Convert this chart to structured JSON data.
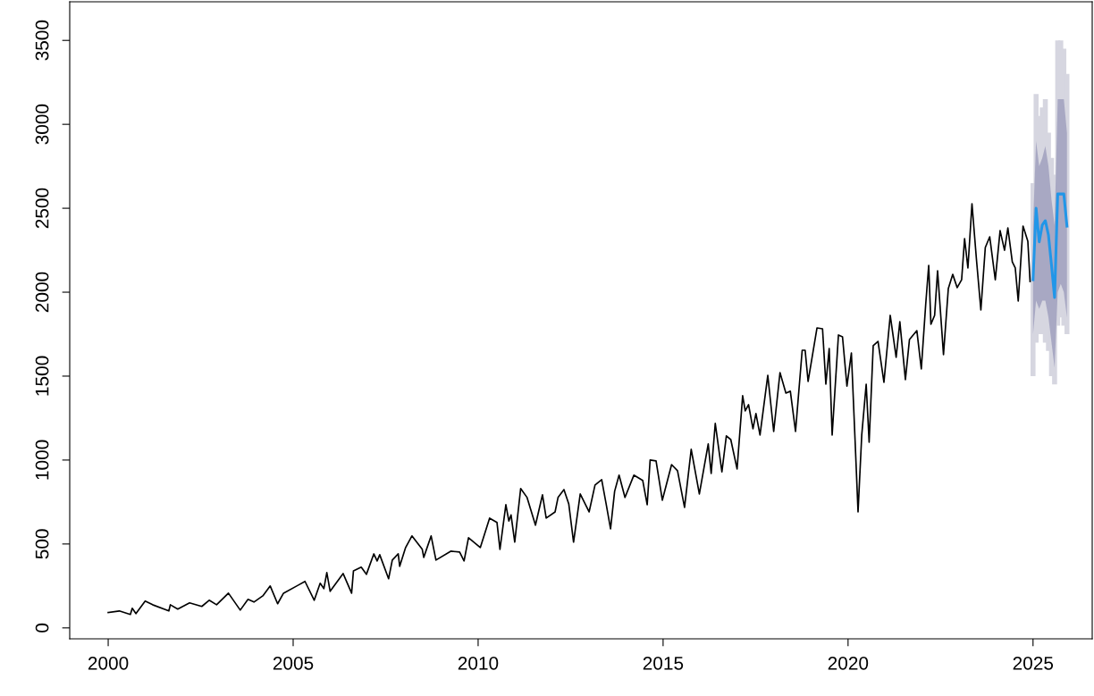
{
  "chart_data": {
    "type": "line",
    "xlim": [
      1998.96,
      2026.6
    ],
    "ylim": [
      -65,
      3730
    ],
    "xticks": [
      2000,
      2005,
      2010,
      2015,
      2020,
      2025
    ],
    "yticks": [
      0,
      500,
      1000,
      1500,
      2000,
      2500,
      3000,
      3500
    ],
    "grid": false,
    "marker": "none",
    "line_style": "solid",
    "series": [
      {
        "color": "#000000",
        "x": [
          2000.0,
          2000.3,
          2000.6,
          2000.65,
          2000.75,
          2001.0,
          2001.2,
          2001.64,
          2001.68,
          2001.88,
          2002.2,
          2002.53,
          2002.73,
          2002.93,
          2003.25,
          2003.57,
          2003.78,
          2003.94,
          2004.18,
          2004.38,
          2004.58,
          2004.74,
          2005.14,
          2005.32,
          2005.57,
          2005.73,
          2005.83,
          2005.91,
          2006.0,
          2006.35,
          2006.58,
          2006.63,
          2006.84,
          2006.98,
          2007.18,
          2007.27,
          2007.34,
          2007.58,
          2007.68,
          2007.84,
          2007.88,
          2008.04,
          2008.21,
          2008.49,
          2008.53,
          2008.73,
          2008.86,
          2009.26,
          2009.5,
          2009.62,
          2009.74,
          2010.06,
          2010.31,
          2010.51,
          2010.59,
          2010.75,
          2010.83,
          2010.89,
          2010.99,
          2011.15,
          2011.32,
          2011.55,
          2011.74,
          2011.84,
          2012.08,
          2012.16,
          2012.32,
          2012.45,
          2012.58,
          2012.76,
          2013.0,
          2013.16,
          2013.34,
          2013.46,
          2013.58,
          2013.69,
          2013.81,
          2013.97,
          2014.21,
          2014.45,
          2014.57,
          2014.65,
          2014.81,
          2014.98,
          2015.23,
          2015.39,
          2015.58,
          2015.76,
          2015.98,
          2016.22,
          2016.3,
          2016.41,
          2016.59,
          2016.71,
          2016.83,
          2017.0,
          2017.15,
          2017.22,
          2017.31,
          2017.43,
          2017.51,
          2017.62,
          2017.83,
          2017.99,
          2018.16,
          2018.32,
          2018.44,
          2018.58,
          2018.76,
          2018.84,
          2018.92,
          2019.16,
          2019.31,
          2019.4,
          2019.49,
          2019.57,
          2019.74,
          2019.85,
          2019.97,
          2020.09,
          2020.19,
          2020.27,
          2020.37,
          2020.49,
          2020.57,
          2020.68,
          2020.81,
          2020.97,
          2021.14,
          2021.3,
          2021.4,
          2021.55,
          2021.66,
          2021.86,
          2021.98,
          2022.1,
          2022.18,
          2022.24,
          2022.34,
          2022.42,
          2022.58,
          2022.71,
          2022.83,
          2022.95,
          2023.07,
          2023.15,
          2023.24,
          2023.35,
          2023.47,
          2023.59,
          2023.71,
          2023.83,
          2023.98,
          2024.11,
          2024.23,
          2024.32,
          2024.44,
          2024.52,
          2024.6,
          2024.73,
          2024.86,
          2024.92
        ],
        "values": [
          92,
          101,
          80,
          117,
          85,
          160,
          138,
          101,
          138,
          112,
          149,
          128,
          165,
          138,
          207,
          106,
          170,
          154,
          191,
          250,
          144,
          207,
          255,
          277,
          165,
          266,
          234,
          330,
          218,
          324,
          207,
          340,
          362,
          319,
          441,
          399,
          436,
          293,
          404,
          441,
          367,
          479,
          548,
          468,
          420,
          548,
          404,
          457,
          452,
          399,
          537,
          479,
          654,
          628,
          468,
          734,
          637,
          673,
          511,
          830,
          778,
          612,
          793,
          654,
          691,
          777,
          824,
          739,
          511,
          798,
          691,
          851,
          883,
          739,
          590,
          814,
          910,
          777,
          910,
          878,
          734,
          1000,
          995,
          761,
          973,
          936,
          718,
          1064,
          798,
          1096,
          920,
          1218,
          930,
          1144,
          1122,
          947,
          1383,
          1293,
          1330,
          1186,
          1277,
          1149,
          1505,
          1170,
          1521,
          1399,
          1410,
          1170,
          1654,
          1654,
          1468,
          1787,
          1782,
          1452,
          1665,
          1149,
          1745,
          1734,
          1441,
          1638,
          1117,
          691,
          1149,
          1452,
          1106,
          1681,
          1707,
          1463,
          1862,
          1612,
          1824,
          1479,
          1718,
          1771,
          1543,
          1931,
          2160,
          1809,
          1862,
          2128,
          1628,
          2021,
          2106,
          2027,
          2074,
          2319,
          2144,
          2527,
          2197,
          1894,
          2266,
          2330,
          2074,
          2367,
          2250,
          2383,
          2181,
          2144,
          1947,
          2394,
          2303,
          2064
        ]
      },
      {
        "color": "#2196e8",
        "x": [
          2025.0,
          2025.083,
          2025.167,
          2025.25,
          2025.333,
          2025.417,
          2025.5,
          2025.583,
          2025.667,
          2025.75,
          2025.833,
          2025.917
        ],
        "values": [
          2074,
          2500,
          2300,
          2400,
          2426,
          2340,
          2160,
          1968,
          2585,
          2585,
          2585,
          2394
        ],
        "lower": [
          1750,
          1950,
          1900,
          1950,
          1950,
          1850,
          1700,
          1550,
          2000,
          2050,
          2000,
          1850
        ],
        "upper": [
          2400,
          2900,
          2750,
          2800,
          2870,
          2750,
          2550,
          2400,
          3150,
          3150,
          3150,
          2950
        ],
        "errors": [
          [
            1500,
            2650
          ],
          [
            1700,
            3180
          ],
          [
            1750,
            3050
          ],
          [
            1750,
            3100
          ],
          [
            1700,
            3150
          ],
          [
            1650,
            2950
          ],
          [
            1500,
            2800
          ],
          [
            1450,
            2700
          ],
          [
            1800,
            3500
          ],
          [
            1850,
            3500
          ],
          [
            1800,
            3450
          ],
          [
            1750,
            3300
          ]
        ]
      }
    ]
  }
}
